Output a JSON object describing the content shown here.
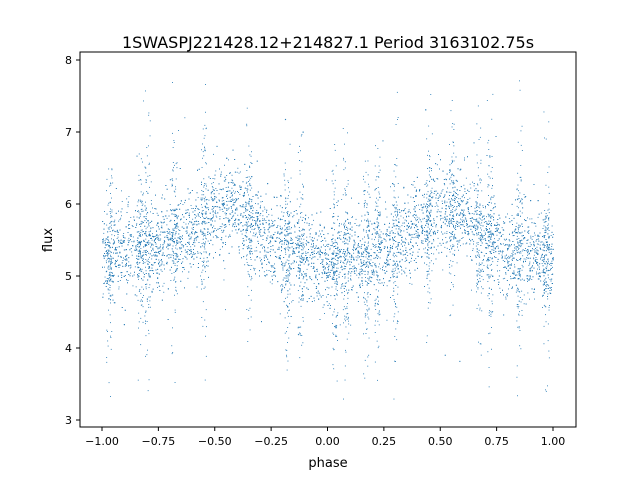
{
  "chart_data": {
    "type": "scatter",
    "title": "1SWASPJ221428.12+214827.1 Period 3163102.75s",
    "xlabel": "phase",
    "ylabel": "flux",
    "xlim": [
      -1.1,
      1.1
    ],
    "ylim": [
      2.9,
      8.02
    ],
    "xticks": [
      -1.0,
      -0.75,
      -0.5,
      -0.25,
      0.0,
      0.25,
      0.5,
      0.75,
      1.0
    ],
    "xtick_labels": [
      "−1.00",
      "−0.75",
      "−0.50",
      "−0.25",
      "0.00",
      "0.25",
      "0.50",
      "0.75",
      "1.00"
    ],
    "yticks": [
      3,
      4,
      5,
      6,
      7,
      8
    ],
    "ytick_labels": [
      "3",
      "4",
      "5",
      "6",
      "7",
      "8"
    ],
    "grid": false,
    "marker_color": "#1f77b4",
    "series": [
      {
        "name": "flux",
        "description_of_profile": "phase-folded light curve; mean flux per phase bin with scatter",
        "phase_bins": [
          -1.0,
          -0.9,
          -0.8,
          -0.7,
          -0.6,
          -0.5,
          -0.4,
          -0.3,
          -0.2,
          -0.1,
          0.0,
          0.1,
          0.2,
          0.3,
          0.4,
          0.5,
          0.6,
          0.7,
          0.8,
          0.9,
          1.0
        ],
        "mean_flux": [
          5.3,
          5.35,
          5.4,
          5.5,
          5.65,
          5.9,
          5.95,
          5.6,
          5.4,
          5.3,
          5.2,
          5.25,
          5.3,
          5.45,
          5.65,
          5.95,
          5.9,
          5.55,
          5.35,
          5.3,
          5.2
        ],
        "flux_std": 0.3,
        "flux_min": 3.15,
        "flux_max": 7.75,
        "outlier_phases": [
          -0.97,
          -0.83,
          -0.8,
          -0.68,
          -0.55,
          -0.35,
          -0.18,
          -0.12,
          0.03,
          0.08,
          0.17,
          0.22,
          0.3,
          0.45,
          0.55,
          0.67,
          0.72,
          0.85,
          0.97
        ]
      }
    ]
  }
}
